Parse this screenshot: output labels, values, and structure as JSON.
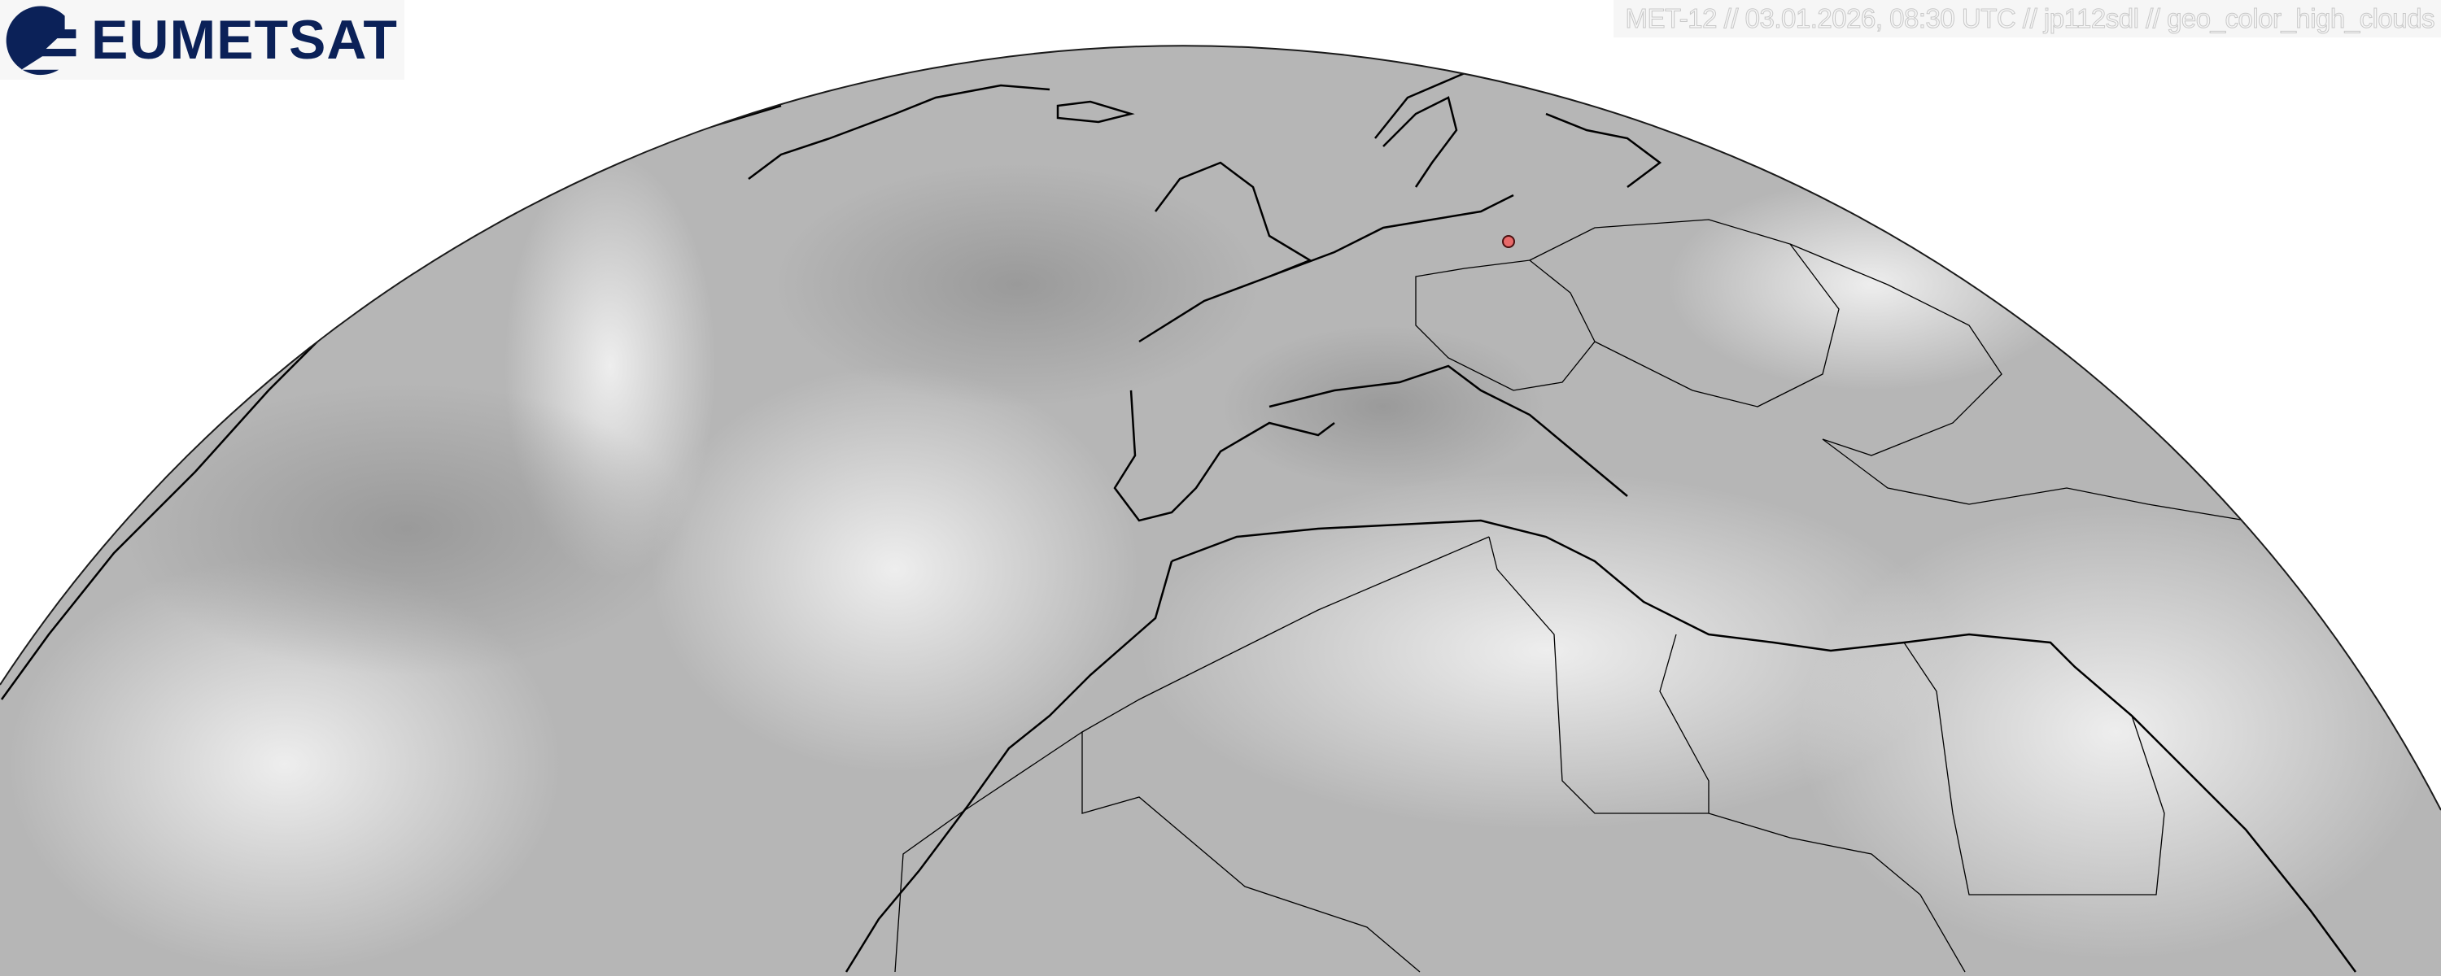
{
  "logo": {
    "text": "EUMETSAT",
    "color": "#0b2158"
  },
  "caption": "MET-12 // 03.01.2026, 08:30 UTC // jp112sdl // geo_color_high_clouds",
  "map": {
    "type": "satellite-full-disc-crop",
    "colors": {
      "cloud_light": "#f2f2f2",
      "surface_gray": "#b4b4b4",
      "border": "#000000",
      "marker": "#e86a6a"
    },
    "marker": {
      "label": ""
    }
  }
}
